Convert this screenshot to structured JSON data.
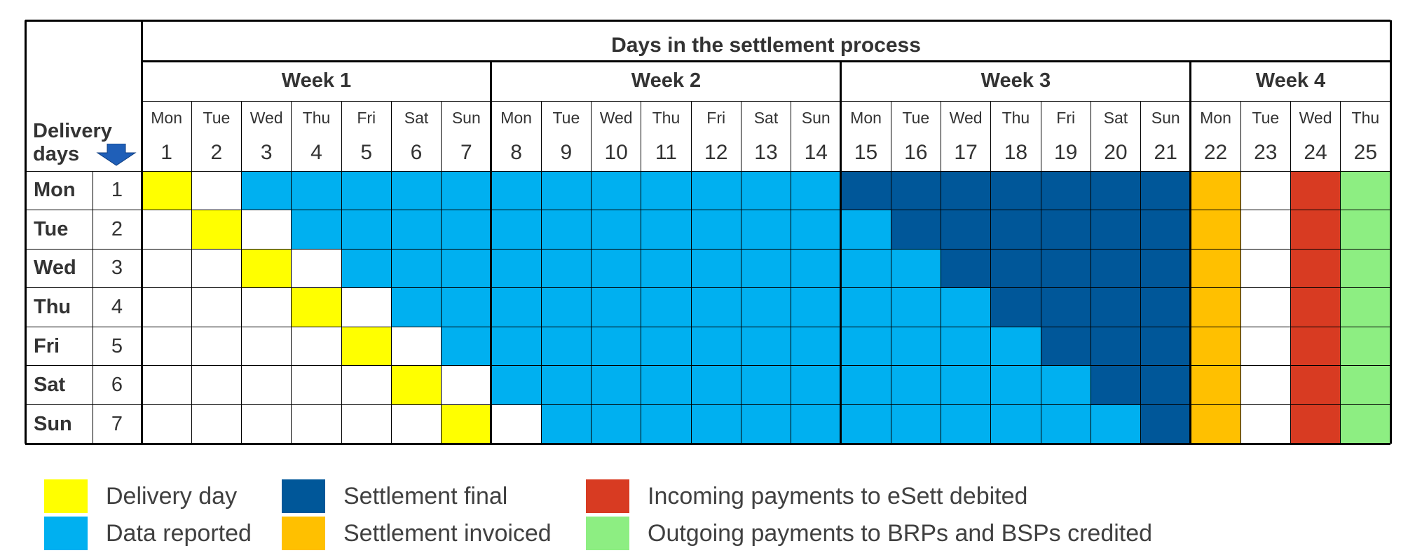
{
  "title": "Days in the settlement process",
  "delivery_header": [
    "Delivery",
    "days"
  ],
  "weeks": [
    "Week 1",
    "Week 2",
    "Week 3",
    "Week 4"
  ],
  "weekdays": [
    "Mon",
    "Tue",
    "Wed",
    "Thu",
    "Fri",
    "Sat",
    "Sun",
    "Mon",
    "Tue",
    "Wed",
    "Thu",
    "Fri",
    "Sat",
    "Sun",
    "Mon",
    "Tue",
    "Wed",
    "Thu",
    "Fri",
    "Sat",
    "Sun",
    "Mon",
    "Tue",
    "Wed",
    "Thu"
  ],
  "day_numbers": [
    "1",
    "2",
    "3",
    "4",
    "5",
    "6",
    "7",
    "8",
    "9",
    "10",
    "11",
    "12",
    "13",
    "14",
    "15",
    "16",
    "17",
    "18",
    "19",
    "20",
    "21",
    "22",
    "23",
    "24",
    "25"
  ],
  "rows": [
    {
      "day": "Mon",
      "num": "1"
    },
    {
      "day": "Tue",
      "num": "2"
    },
    {
      "day": "Wed",
      "num": "3"
    },
    {
      "day": "Thu",
      "num": "4"
    },
    {
      "day": "Fri",
      "num": "5"
    },
    {
      "day": "Sat",
      "num": "6"
    },
    {
      "day": "Sun",
      "num": "7"
    }
  ],
  "colors": {
    "delivery": "#FFFF00",
    "reported": "#00B0F0",
    "final": "#005799",
    "invoiced": "#FFC000",
    "debited": "#D83B22",
    "credited": "#8DEE82",
    "empty": "#FFFFFF"
  },
  "grid_codes": [
    "YWRRRRRRRRRRRRFFFFFFFIWDC",
    "WYWRRRRRRRRRRRRFFFFFFIWDC",
    "WWYWRRRRRRRRRRRRFFFFFIWDC",
    "WWWYWRRRRRRRRRRRRFFFFIWDC",
    "WWWWYWRRRRRRRRRRRRFFFIWDC",
    "WWWWWYWRRRRRRRRRRRRFFIWDC",
    "WWWWWWYWRRRRRRRRRRRRFIWDC"
  ],
  "legend": [
    {
      "label": "Delivery day",
      "color": "#FFFF00"
    },
    {
      "label": "Data reported",
      "color": "#00B0F0"
    },
    {
      "label": "Settlement final",
      "color": "#005799"
    },
    {
      "label": "Settlement invoiced",
      "color": "#FFC000"
    },
    {
      "label": "Incoming payments to eSett debited",
      "color": "#D83B22"
    },
    {
      "label": "Outgoing payments to BRPs and BSPs credited",
      "color": "#8DEE82"
    }
  ]
}
